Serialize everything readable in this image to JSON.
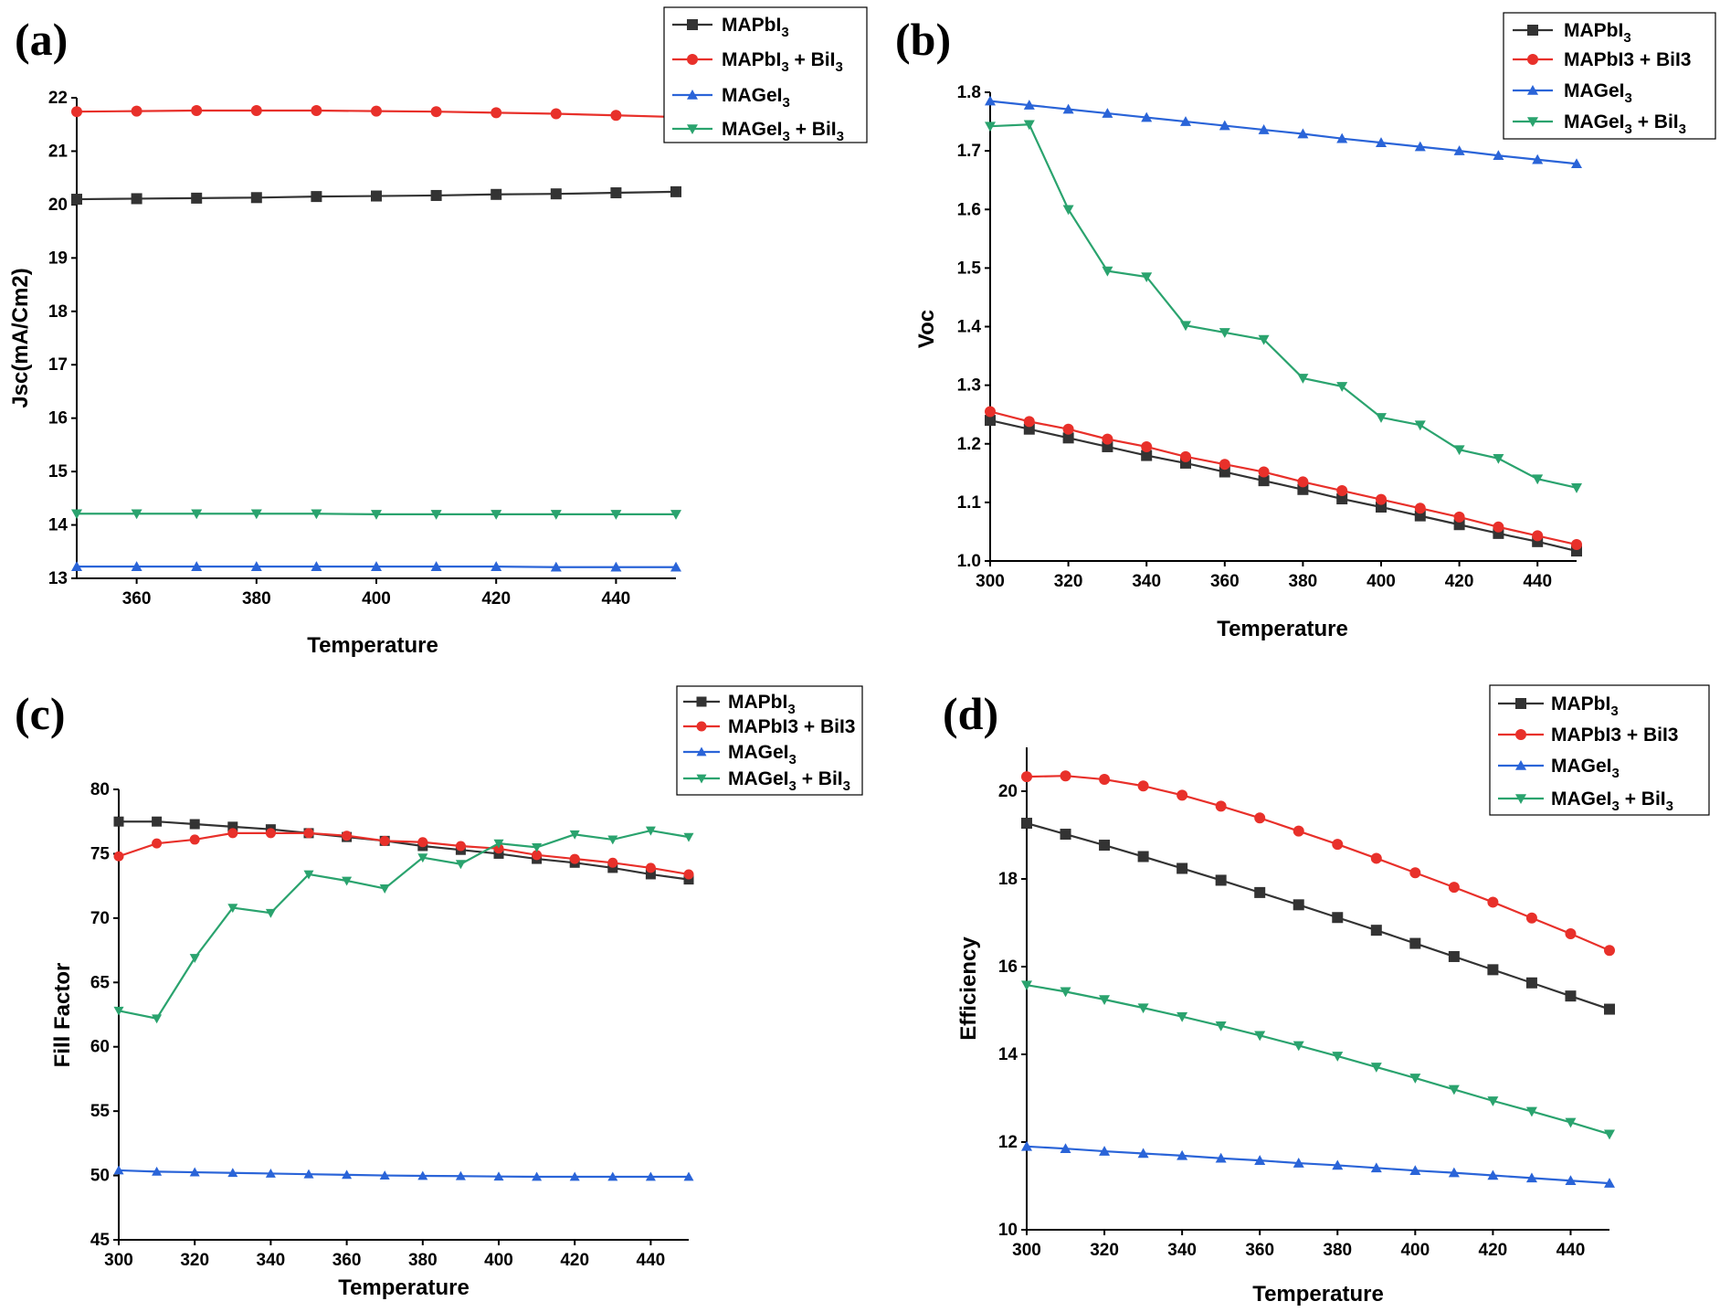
{
  "chart_data": [
    {
      "label": "(a)",
      "type": "line",
      "xlabel": "Temperature",
      "ylabel": "Jsc(mA/Cm2)",
      "xlim": [
        350,
        450
      ],
      "ylim": [
        13,
        22
      ],
      "xticks": [
        360,
        380,
        400,
        420,
        440
      ],
      "yticks": [
        13,
        14,
        15,
        16,
        17,
        18,
        19,
        20,
        21,
        22
      ],
      "x": [
        350,
        360,
        370,
        380,
        390,
        400,
        410,
        420,
        430,
        440,
        450
      ],
      "series": [
        {
          "name": "MAPbI3",
          "color": "#333333",
          "marker": "square",
          "values": [
            20.1,
            20.11,
            20.12,
            20.13,
            20.15,
            20.16,
            20.17,
            20.19,
            20.2,
            20.22,
            20.24
          ]
        },
        {
          "name": "MAPbI3 + BiI3",
          "color": "#e8302a",
          "marker": "circle",
          "values": [
            21.74,
            21.75,
            21.76,
            21.76,
            21.76,
            21.75,
            21.74,
            21.72,
            21.7,
            21.67,
            21.64
          ]
        },
        {
          "name": "MAGeI3",
          "color": "#2a64d8",
          "marker": "triangle-up",
          "values": [
            13.22,
            13.22,
            13.22,
            13.22,
            13.22,
            13.22,
            13.22,
            13.22,
            13.21,
            13.21,
            13.21
          ]
        },
        {
          "name": "MAGeI3 + BiI3",
          "color": "#2aa36e",
          "marker": "triangle-down",
          "values": [
            14.21,
            14.21,
            14.21,
            14.21,
            14.21,
            14.2,
            14.2,
            14.2,
            14.2,
            14.2,
            14.2
          ]
        }
      ],
      "legend": {
        "placement": "top-right",
        "entries": [
          {
            "base": "MAPbI",
            "sub": "3",
            "rest": ""
          },
          {
            "base": "MAPbI",
            "sub": "3",
            "rest": " + BiI",
            "sub2": "3"
          },
          {
            "base": "MAGeI",
            "sub": "3",
            "rest": ""
          },
          {
            "base": "MAGeI",
            "sub": "3",
            "rest": " + BiI",
            "sub2": "3"
          }
        ]
      }
    },
    {
      "label": "(b)",
      "type": "line",
      "xlabel": "Temperature",
      "ylabel": "Voc",
      "xlim": [
        300,
        450
      ],
      "ylim": [
        1.0,
        1.8
      ],
      "xticks": [
        300,
        320,
        340,
        360,
        380,
        400,
        420,
        440
      ],
      "yticks": [
        1.0,
        1.1,
        1.2,
        1.3,
        1.4,
        1.5,
        1.6,
        1.7,
        1.8
      ],
      "x": [
        300,
        310,
        320,
        330,
        340,
        350,
        360,
        370,
        380,
        390,
        400,
        410,
        420,
        430,
        440,
        450
      ],
      "series": [
        {
          "name": "MAPbI3",
          "color": "#333333",
          "marker": "square",
          "values": [
            1.24,
            1.225,
            1.21,
            1.195,
            1.18,
            1.167,
            1.152,
            1.137,
            1.122,
            1.106,
            1.092,
            1.077,
            1.062,
            1.047,
            1.033,
            1.017
          ]
        },
        {
          "name": "MAPbI3 + BiI3",
          "color": "#e8302a",
          "marker": "circle",
          "values": [
            1.255,
            1.238,
            1.225,
            1.208,
            1.195,
            1.178,
            1.165,
            1.152,
            1.135,
            1.12,
            1.105,
            1.09,
            1.075,
            1.058,
            1.043,
            1.028
          ]
        },
        {
          "name": "MAGeI3",
          "color": "#2a64d8",
          "marker": "triangle-up",
          "values": [
            1.785,
            1.778,
            1.771,
            1.764,
            1.757,
            1.75,
            1.743,
            1.736,
            1.729,
            1.721,
            1.714,
            1.707,
            1.7,
            1.692,
            1.685,
            1.678
          ]
        },
        {
          "name": "MAGeI3 + BiI3",
          "color": "#2aa36e",
          "marker": "triangle-down",
          "values": [
            1.742,
            1.745,
            1.6,
            1.495,
            1.485,
            1.402,
            1.39,
            1.378,
            1.312,
            1.298,
            1.245,
            1.232,
            1.19,
            1.175,
            1.14,
            1.125
          ]
        }
      ],
      "legend": {
        "placement": "top-right",
        "entries": [
          {
            "base": "MAPbI",
            "sub": "3",
            "rest": ""
          },
          {
            "base": "MAPbI3  + BiI3",
            "sub": "",
            "rest": ""
          },
          {
            "base": "MAGeI",
            "sub": "3",
            "rest": ""
          },
          {
            "base": "MAGeI",
            "sub": "3",
            "rest": " + BiI",
            "sub2": "3"
          }
        ]
      }
    },
    {
      "label": "(c)",
      "type": "line",
      "xlabel": "Temperature",
      "ylabel": "Fill Factor",
      "xlim": [
        300,
        450
      ],
      "ylim": [
        45,
        80
      ],
      "xticks": [
        300,
        320,
        340,
        360,
        380,
        400,
        420,
        440
      ],
      "yticks": [
        45,
        50,
        55,
        60,
        65,
        70,
        75,
        80
      ],
      "x": [
        300,
        310,
        320,
        330,
        340,
        350,
        360,
        370,
        380,
        390,
        400,
        410,
        420,
        430,
        440,
        450
      ],
      "series": [
        {
          "name": "MAPbI3",
          "color": "#333333",
          "marker": "square",
          "values": [
            77.5,
            77.5,
            77.3,
            77.1,
            76.9,
            76.6,
            76.3,
            76.0,
            75.6,
            75.3,
            75.0,
            74.6,
            74.3,
            73.9,
            73.4,
            73.0
          ]
        },
        {
          "name": "MAPbI3 + BiI3",
          "color": "#e8302a",
          "marker": "circle",
          "values": [
            74.8,
            75.8,
            76.1,
            76.6,
            76.6,
            76.6,
            76.4,
            76.0,
            75.9,
            75.6,
            75.4,
            74.9,
            74.6,
            74.3,
            73.9,
            73.4
          ]
        },
        {
          "name": "MAGeI3",
          "color": "#2a64d8",
          "marker": "triangle-up",
          "values": [
            50.4,
            50.3,
            50.25,
            50.2,
            50.15,
            50.1,
            50.05,
            50.0,
            49.97,
            49.95,
            49.92,
            49.9,
            49.9,
            49.9,
            49.9,
            49.9
          ]
        },
        {
          "name": "MAGeI3 + BiI3",
          "color": "#2aa36e",
          "marker": "triangle-down",
          "values": [
            62.8,
            62.2,
            66.9,
            70.8,
            70.4,
            73.4,
            72.9,
            72.3,
            74.7,
            74.2,
            75.8,
            75.5,
            76.5,
            76.1,
            76.8,
            76.3
          ]
        }
      ],
      "legend": {
        "placement": "top-right",
        "entries": [
          {
            "base": "MAPbI",
            "sub": "3",
            "rest": ""
          },
          {
            "base": "MAPbI3  + BiI3",
            "sub": "",
            "rest": ""
          },
          {
            "base": "MAGeI",
            "sub": "3",
            "rest": ""
          },
          {
            "base": "MAGeI",
            "sub": "3",
            "rest": " + BiI",
            "sub2": "3"
          }
        ]
      }
    },
    {
      "label": "(d)",
      "type": "line",
      "xlabel": "Temperature",
      "ylabel": "Efficiency",
      "xlim": [
        300,
        450
      ],
      "ylim": [
        10,
        21
      ],
      "xticks": [
        300,
        320,
        340,
        360,
        380,
        400,
        420,
        440
      ],
      "yticks": [
        10,
        12,
        14,
        16,
        18,
        20
      ],
      "x": [
        300,
        310,
        320,
        330,
        340,
        350,
        360,
        370,
        380,
        390,
        400,
        410,
        420,
        430,
        440,
        450
      ],
      "series": [
        {
          "name": "MAPbI3",
          "color": "#333333",
          "marker": "square",
          "values": [
            19.27,
            19.02,
            18.77,
            18.51,
            18.24,
            17.97,
            17.69,
            17.41,
            17.12,
            16.83,
            16.53,
            16.23,
            15.93,
            15.63,
            15.33,
            15.03
          ]
        },
        {
          "name": "MAPbI3 + BiI3",
          "color": "#e8302a",
          "marker": "circle",
          "values": [
            20.33,
            20.35,
            20.27,
            20.12,
            19.91,
            19.66,
            19.39,
            19.09,
            18.79,
            18.47,
            18.14,
            17.81,
            17.47,
            17.11,
            16.75,
            16.37
          ]
        },
        {
          "name": "MAGeI3",
          "color": "#2a64d8",
          "marker": "triangle-up",
          "values": [
            11.9,
            11.85,
            11.79,
            11.74,
            11.69,
            11.63,
            11.58,
            11.52,
            11.47,
            11.41,
            11.35,
            11.3,
            11.24,
            11.18,
            11.12,
            11.06
          ]
        },
        {
          "name": "MAGeI3 + BiI3",
          "color": "#2aa36e",
          "marker": "triangle-down",
          "values": [
            15.58,
            15.43,
            15.25,
            15.06,
            14.86,
            14.65,
            14.43,
            14.2,
            13.96,
            13.71,
            13.46,
            13.2,
            12.94,
            12.7,
            12.45,
            12.18
          ]
        }
      ],
      "legend": {
        "placement": "top-right",
        "entries": [
          {
            "base": "MAPbI",
            "sub": "3",
            "rest": ""
          },
          {
            "base": "MAPbI3  + BiI3",
            "sub": "",
            "rest": ""
          },
          {
            "base": "MAGeI",
            "sub": "3",
            "rest": ""
          },
          {
            "base": "MAGeI",
            "sub": "3",
            "rest": " + BiI",
            "sub2": "3"
          }
        ]
      }
    }
  ]
}
